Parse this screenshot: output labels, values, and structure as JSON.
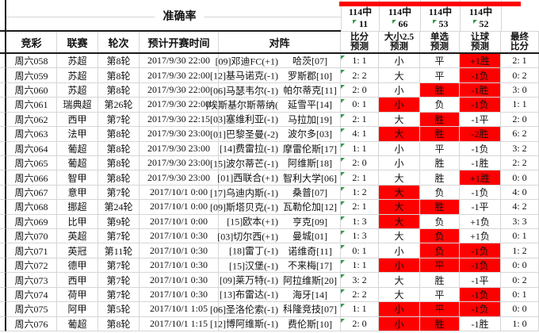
{
  "colors": {
    "red": "#fe0000",
    "grid": "#d6d6d6",
    "dark": "#1a1a1a",
    "green": "#2f9e44"
  },
  "header": {
    "accuracy_label": "准确率",
    "accuracy_cols": [
      {
        "hits": "114中",
        "count": "11"
      },
      {
        "hits": "114中",
        "count": "66"
      },
      {
        "hits": "114中",
        "count": "53"
      },
      {
        "hits": "114中",
        "count": "52"
      }
    ],
    "columns": {
      "jc": "竞彩",
      "league": "联赛",
      "round": "轮次",
      "time": "预计开赛时间",
      "vs": "对阵",
      "score1": "比分",
      "score2": "预测",
      "ou1": "大小2.5",
      "ou2": "预测",
      "pick1": "单选",
      "pick2": "预测",
      "let1": "让球",
      "let2": "预测",
      "final1": "最终",
      "final2": "比分"
    }
  },
  "rows": [
    {
      "id": "周六058",
      "league": "苏超",
      "round": "第8轮",
      "time": "2017/9/30 22:00",
      "home": "[09]邓迪FC(+1)",
      "away": "哈茨[07]",
      "score": "1: 1",
      "ou": "小",
      "ou_red": false,
      "pick": "平",
      "pick_red": false,
      "let": "+1胜",
      "let_red": true,
      "final": "2: 1"
    },
    {
      "id": "周六059",
      "league": "苏超",
      "round": "第8轮",
      "time": "2017/9/30 22:00",
      "home": "[12]基马诺克(-1)",
      "away": "罗斯郡[10]",
      "score": "2: 2",
      "ou": "大",
      "ou_red": false,
      "pick": "平",
      "pick_red": false,
      "let": "-1负",
      "let_red": true,
      "final": "0: 2"
    },
    {
      "id": "周六060",
      "league": "苏超",
      "round": "第8轮",
      "time": "2017/9/30 22:00",
      "home": "[06]马瑟韦尔(-1)",
      "away": "帕尔蒂克[11]",
      "score": "2: 0",
      "ou": "小",
      "ou_red": false,
      "pick": "胜",
      "pick_red": true,
      "let": "-1胜",
      "let_red": true,
      "final": "3: 0"
    },
    {
      "id": "周六061",
      "league": "瑞典超",
      "round": "第26轮",
      "time": "2017/9/30 22:00",
      "home": "]埃斯基尔斯蒂纳(",
      "away": "延雪平[14]",
      "score": "0: 1",
      "ou": "小",
      "ou_red": true,
      "pick": "负",
      "pick_red": false,
      "let": "-1负",
      "let_red": true,
      "final": "1: 1"
    },
    {
      "id": "周六062",
      "league": "西甲",
      "round": "第7轮",
      "time": "2017/9/30 22:15",
      "home": "[03]塞维利亚(-1)",
      "away": "马拉加[19]",
      "score": "2: 1",
      "ou": "大",
      "ou_red": false,
      "pick": "胜",
      "pick_red": true,
      "let": "-1平",
      "let_red": false,
      "final": "2: 0"
    },
    {
      "id": "周六063",
      "league": "法甲",
      "round": "第8轮",
      "time": "2017/9/30 23:00",
      "home": "[01]巴黎圣曼(-2)",
      "away": "波尔多[03]",
      "score": "4: 1",
      "ou": "大",
      "ou_red": true,
      "pick": "胜",
      "pick_red": true,
      "let": "-2胜",
      "let_red": true,
      "final": "6: 2"
    },
    {
      "id": "周六064",
      "league": "葡超",
      "round": "第8轮",
      "time": "2017/9/30 23:00",
      "home": "[14]费雷拉(-1)",
      "away": "摩雷伦斯[17]",
      "score": "1: 1",
      "ou": "小",
      "ou_red": false,
      "pick": "平",
      "pick_red": false,
      "let": "-1负",
      "let_red": false,
      "final": "3: 2"
    },
    {
      "id": "周六065",
      "league": "葡超",
      "round": "第8轮",
      "time": "2017/9/30 23:00",
      "home": "[15]波尔蒂芒(-1)",
      "away": "阿维斯[18]",
      "score": "2: 0",
      "ou": "小",
      "ou_red": false,
      "pick": "胜",
      "pick_red": false,
      "let": "-1胜",
      "let_red": false,
      "final": "2: 2"
    },
    {
      "id": "周六066",
      "league": "智甲",
      "round": "第8轮",
      "time": "2017/9/30 23:00",
      "home": "[01]西联合(+1)",
      "away": "智利大学[06]",
      "score": "2: 1",
      "ou": "大",
      "ou_red": false,
      "pick": "胜",
      "pick_red": false,
      "let": "+1胜",
      "let_red": true,
      "final": "0: 0"
    },
    {
      "id": "周六067",
      "league": "意甲",
      "round": "第7轮",
      "time": "2017/10/1 0:00",
      "home": "[17]乌迪内斯(-1)",
      "away": "桑普[07]",
      "score": "1: 2",
      "ou": "大",
      "ou_red": true,
      "pick": "负",
      "pick_red": false,
      "let": "-1负",
      "let_red": false,
      "final": "4: 0"
    },
    {
      "id": "周六068",
      "league": "挪超",
      "round": "第24轮",
      "time": "2017/10/1 0:00",
      "home": "[09]斯塔贝克(-1)",
      "away": "瓦勒伦加[12]",
      "score": "2: 1",
      "ou": "大",
      "ou_red": true,
      "pick": "胜",
      "pick_red": true,
      "let": "-1平",
      "let_red": false,
      "final": "4: 2"
    },
    {
      "id": "周六069",
      "league": "比甲",
      "round": "第9轮",
      "time": "2017/10/1 0:00",
      "home": "[15]欧本(+1)",
      "away": "亨克[09]",
      "score": "1: 3",
      "ou": "大",
      "ou_red": true,
      "pick": "负",
      "pick_red": false,
      "let": "+1负",
      "let_red": false,
      "final": "3: 3"
    },
    {
      "id": "周六070",
      "league": "英超",
      "round": "第7轮",
      "time": "2017/10/1 0:30",
      "home": "[03]切尔西(+1)",
      "away": "曼城[01]",
      "score": "1: 3",
      "ou": "大",
      "ou_red": false,
      "pick": "负",
      "pick_red": true,
      "let": "+1负",
      "let_red": false,
      "final": "0: 1"
    },
    {
      "id": "周六071",
      "league": "英冠",
      "round": "第11轮",
      "time": "2017/10/1 0:30",
      "home": "[18]雷丁(-1)",
      "away": "诺维奇[11]",
      "score": "0: 1",
      "ou": "小",
      "ou_red": false,
      "pick": "负",
      "pick_red": true,
      "let": "-1负",
      "let_red": true,
      "final": "1: 2"
    },
    {
      "id": "周六072",
      "league": "德甲",
      "round": "第7轮",
      "time": "2017/10/1 0:30",
      "home": "[15]汉堡(-1)",
      "away": "不来梅[17]",
      "score": "1: 1",
      "ou": "小",
      "ou_red": true,
      "pick": "平",
      "pick_red": true,
      "let": "-1负",
      "let_red": true,
      "final": "0: 0"
    },
    {
      "id": "周六073",
      "league": "西甲",
      "round": "第7轮",
      "time": "2017/10/1 0:30",
      "home": "[09]莱万特(-1)",
      "away": "阿拉维斯[20]",
      "score": "3: 2",
      "ou": "大",
      "ou_red": false,
      "pick": "胜",
      "pick_red": false,
      "let": "-1平",
      "let_red": false,
      "final": "0: 2"
    },
    {
      "id": "周六074",
      "league": "荷甲",
      "round": "第7轮",
      "time": "2017/10/1 0:30",
      "home": "[13]布雷达(-1)",
      "away": "海牙[14]",
      "score": "2: 2",
      "ou": "大",
      "ou_red": false,
      "pick": "平",
      "pick_red": false,
      "let": "-1负",
      "let_red": true,
      "final": "0: 1"
    },
    {
      "id": "周六075",
      "league": "阿甲",
      "round": "第5轮",
      "time": "2017/10/1 1:05",
      "home": "[06]圣洛伦索(-1)",
      "away": "科隆竞技[07]",
      "score": "1: 1",
      "ou": "小",
      "ou_red": true,
      "pick": "平",
      "pick_red": true,
      "let": "-1负",
      "let_red": true,
      "final": "0: 0"
    },
    {
      "id": "周六076",
      "league": "葡超",
      "round": "第8轮",
      "time": "2017/10/1 1:15",
      "home": "[12]博阿维斯(-1)",
      "away": "费伦斯[10]",
      "score": "2: 0",
      "ou": "小",
      "ou_red": true,
      "pick": "胜",
      "pick_red": true,
      "let": "-1胜",
      "let_red": false,
      "final": "1: 0"
    }
  ]
}
